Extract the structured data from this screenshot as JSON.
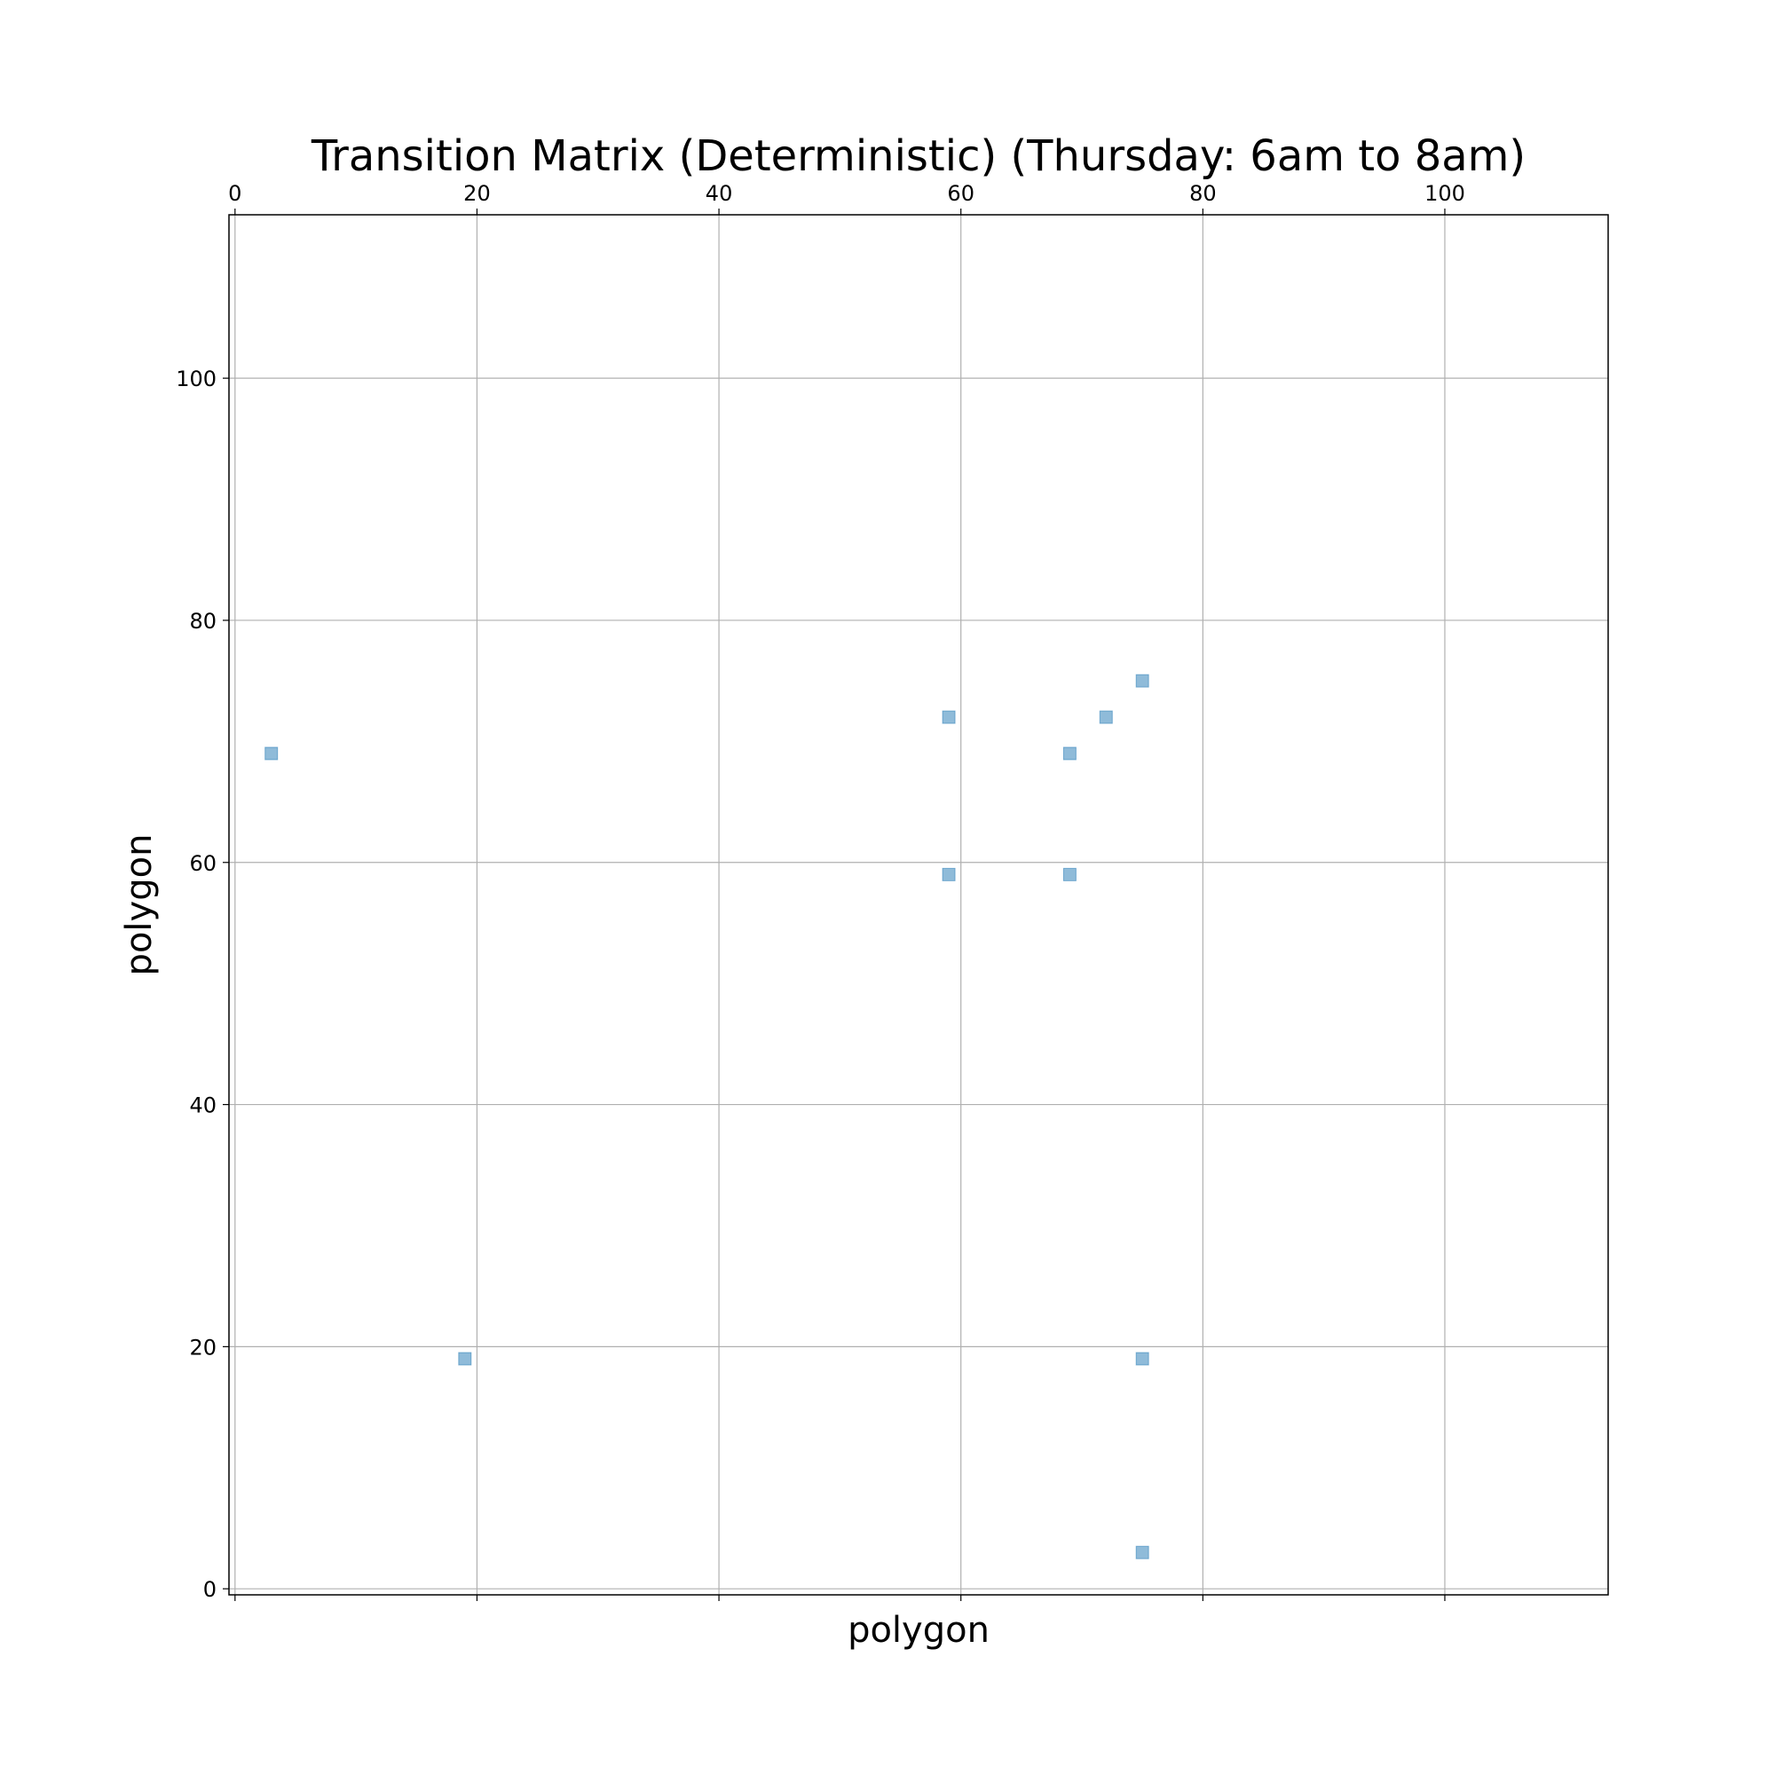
{
  "chart_data": {
    "type": "scatter",
    "title": "Transition Matrix (Deterministic) (Thursday: 6am to 8am)",
    "xlabel": "polygon",
    "ylabel": "polygon",
    "xlim": [
      -0.5,
      113.5
    ],
    "ylim": [
      113.5,
      -0.5
    ],
    "y_inverted": true,
    "x_axis_position": "top",
    "xticks": [
      0,
      20,
      40,
      60,
      80,
      100
    ],
    "yticks": [
      0,
      20,
      40,
      60,
      80,
      100
    ],
    "grid": true,
    "marker": "square",
    "marker_color": "#1f77b4",
    "marker_opacity": 0.5,
    "series": [
      {
        "points": [
          {
            "x": 75,
            "y": 3
          },
          {
            "x": 19,
            "y": 19
          },
          {
            "x": 75,
            "y": 19
          },
          {
            "x": 59,
            "y": 59
          },
          {
            "x": 69,
            "y": 59
          },
          {
            "x": 3,
            "y": 69
          },
          {
            "x": 69,
            "y": 69
          },
          {
            "x": 59,
            "y": 72
          },
          {
            "x": 72,
            "y": 72
          },
          {
            "x": 75,
            "y": 75
          }
        ]
      }
    ]
  }
}
